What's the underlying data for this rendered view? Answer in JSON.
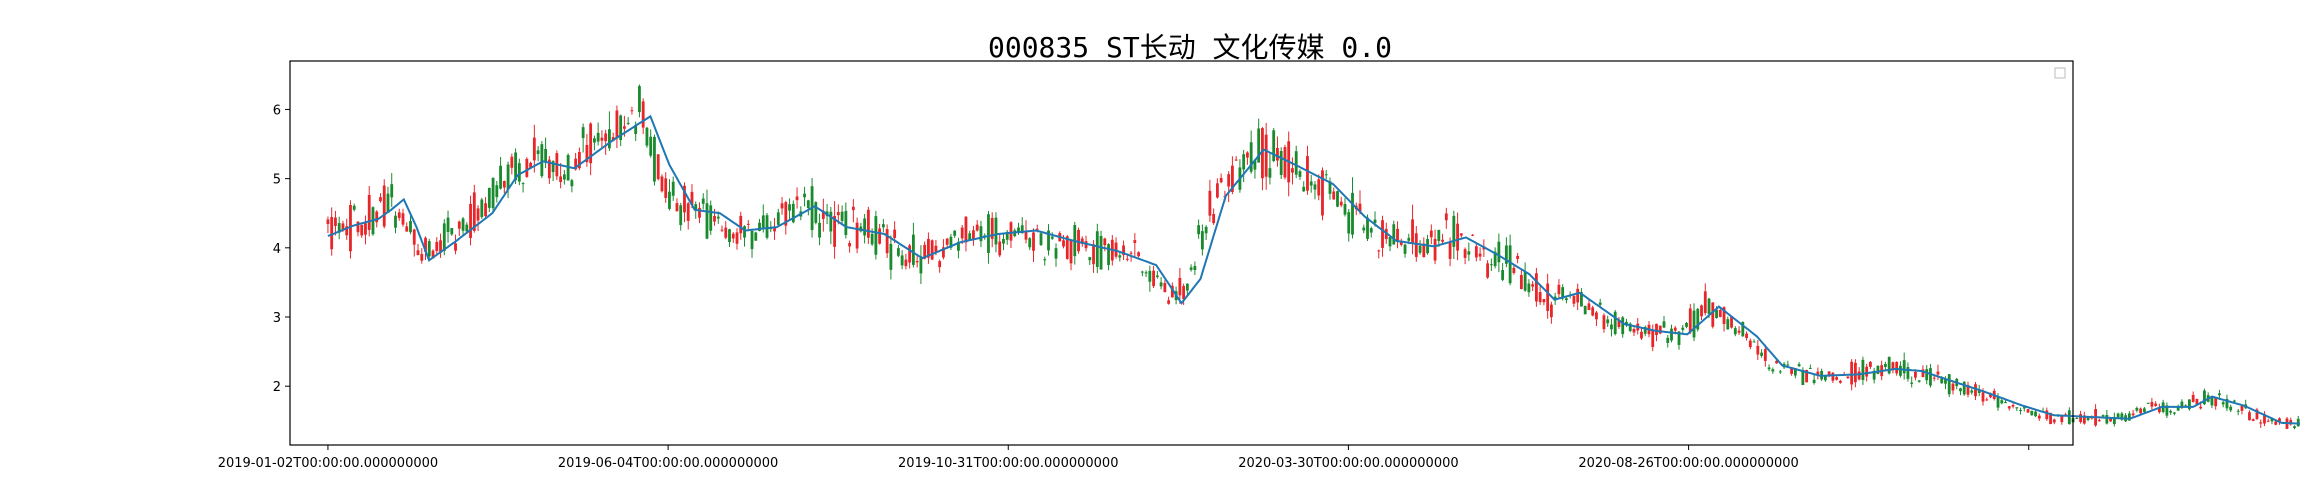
{
  "chart_data": {
    "type": "candlestick",
    "title": "000835 ST长动 文化传媒 0.0",
    "xlabel": "",
    "ylabel": "",
    "x_tick_labels": [
      "2019-01-02T00:00:00.000000000",
      "2019-06-04T00:00:00.000000000",
      "2019-10-31T00:00:00.000000000",
      "2020-03-30T00:00:00.000000000",
      "2020-08-26T00:00:00.000000000",
      ""
    ],
    "x_range_trading_days": [
      -12,
      552
    ],
    "y_ticks": [
      2,
      3,
      4,
      5,
      6
    ],
    "ylim": [
      1.15,
      6.7
    ],
    "grid": false,
    "legend": "top-right (empty)",
    "colors": {
      "up": "#e8262a",
      "down": "#1a8a2e",
      "moving_average": "#1f77b4"
    },
    "series": [
      {
        "name": "",
        "kind": "moving_average",
        "anchors": [
          [
            0,
            4.17
          ],
          [
            8,
            4.32
          ],
          [
            16,
            4.42
          ],
          [
            20,
            4.55
          ],
          [
            24,
            4.7
          ],
          [
            28,
            4.3
          ],
          [
            32,
            3.82
          ],
          [
            40,
            4.08
          ],
          [
            52,
            4.5
          ],
          [
            60,
            5.05
          ],
          [
            68,
            5.25
          ],
          [
            78,
            5.15
          ],
          [
            90,
            5.55
          ],
          [
            102,
            5.9
          ],
          [
            108,
            5.2
          ],
          [
            116,
            4.55
          ],
          [
            124,
            4.5
          ],
          [
            132,
            4.25
          ],
          [
            142,
            4.3
          ],
          [
            154,
            4.6
          ],
          [
            164,
            4.3
          ],
          [
            176,
            4.2
          ],
          [
            188,
            3.85
          ],
          [
            200,
            4.08
          ],
          [
            212,
            4.2
          ],
          [
            224,
            4.25
          ],
          [
            236,
            4.1
          ],
          [
            250,
            3.95
          ],
          [
            262,
            3.75
          ],
          [
            270,
            3.2
          ],
          [
            276,
            3.55
          ],
          [
            284,
            4.75
          ],
          [
            296,
            5.42
          ],
          [
            306,
            5.2
          ],
          [
            318,
            4.92
          ],
          [
            328,
            4.45
          ],
          [
            338,
            4.1
          ],
          [
            350,
            4.02
          ],
          [
            360,
            4.15
          ],
          [
            370,
            3.9
          ],
          [
            380,
            3.62
          ],
          [
            388,
            3.25
          ],
          [
            396,
            3.35
          ],
          [
            410,
            2.9
          ],
          [
            420,
            2.8
          ],
          [
            430,
            2.75
          ],
          [
            440,
            3.15
          ],
          [
            452,
            2.72
          ],
          [
            460,
            2.3
          ],
          [
            472,
            2.15
          ],
          [
            484,
            2.17
          ],
          [
            496,
            2.25
          ],
          [
            504,
            2.22
          ],
          [
            512,
            2.1
          ],
          [
            524,
            1.92
          ],
          [
            536,
            1.72
          ],
          [
            546,
            1.58
          ],
          [
            560,
            1.55
          ],
          [
            570,
            1.53
          ],
          [
            580,
            1.7
          ],
          [
            590,
            1.7
          ],
          [
            596,
            1.85
          ],
          [
            606,
            1.72
          ],
          [
            618,
            1.47
          ],
          [
            628,
            1.45
          ]
        ]
      },
      {
        "name": "",
        "kind": "daily_candles",
        "count": 530,
        "note": ""
      }
    ]
  }
}
